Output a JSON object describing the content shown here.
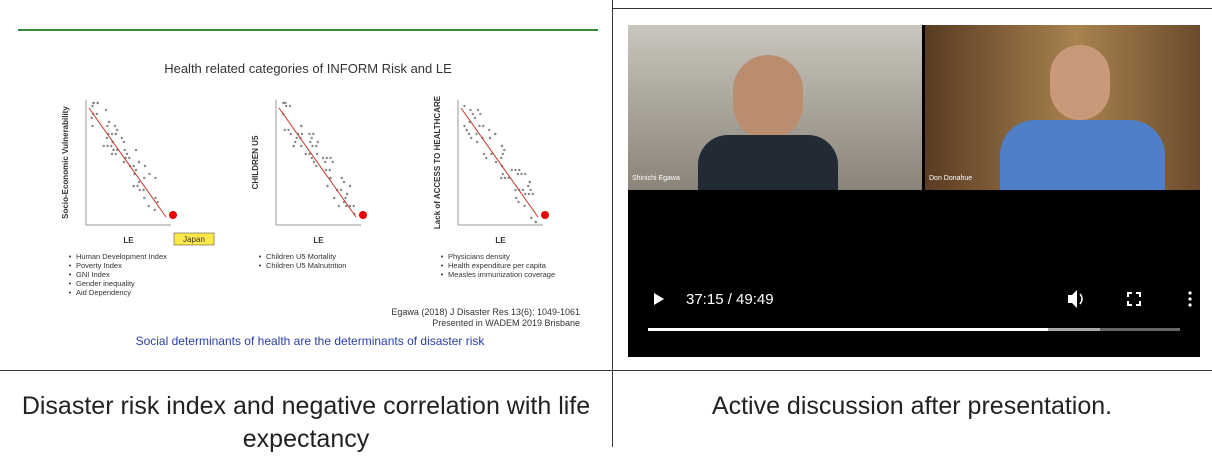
{
  "slide": {
    "title": "Health related categories of INFORM Risk and LE",
    "panels": [
      {
        "y_label": "Socio-Economic Vulnerability",
        "x_label": "LE",
        "callout": "Japan",
        "bullets": [
          "Human Development Index",
          "Poverty Index",
          "GNI Index",
          "Gender inequality",
          "Aid Dependency"
        ]
      },
      {
        "y_label": "CHILDREN U5",
        "x_label": "LE",
        "bullets": [
          "Children U5 Mortality",
          "Children U5 Malnutrition"
        ]
      },
      {
        "y_label": "Lack of ACCESS TO HEALTHCARE",
        "x_label": "LE",
        "bullets": [
          "Physicians density",
          "Health expenditure per capita",
          "Measles immunization coverage"
        ]
      }
    ],
    "citation": [
      "Egawa (2018) J Disaster Res 13(6): 1049-1061",
      "Presented in WADEM 2019 Brisbane"
    ],
    "conclusion": "Social determinants of health are the determinants of disaster risk"
  },
  "video": {
    "participants": [
      "Shinichi Egawa",
      "Don Donahue"
    ],
    "time": "37:15 / 49:49"
  },
  "captions": [
    "Disaster risk index and negative correlation with life expectancy",
    "Active discussion after presentation."
  ]
}
